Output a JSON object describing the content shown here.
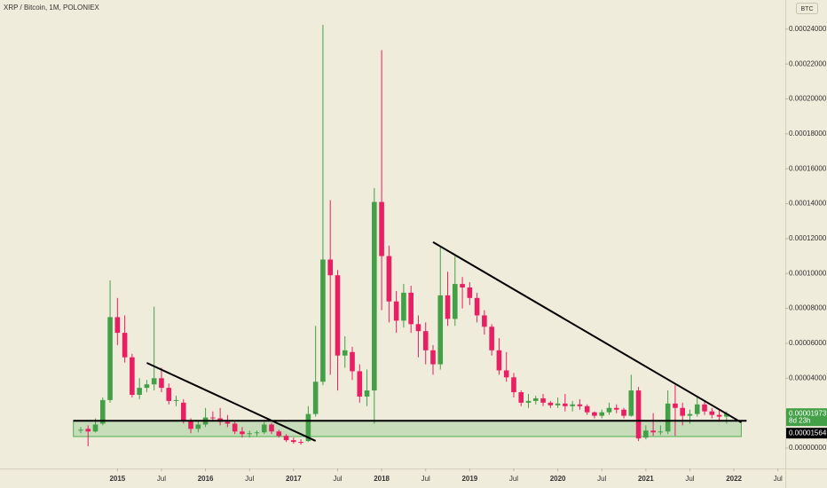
{
  "chart_data": {
    "type": "candlestick",
    "title": "XRP / Bitcoin, 1M, POLONIEX",
    "currency": "BTC",
    "up_color": "#43a047",
    "down_color": "#e91e63",
    "x": [
      "2014-08",
      "2014-09",
      "2014-10",
      "2014-11",
      "2014-12",
      "2015-01",
      "2015-02",
      "2015-03",
      "2015-04",
      "2015-05",
      "2015-06",
      "2015-07",
      "2015-08",
      "2015-09",
      "2015-10",
      "2015-11",
      "2015-12",
      "2016-01",
      "2016-02",
      "2016-03",
      "2016-04",
      "2016-05",
      "2016-06",
      "2016-07",
      "2016-08",
      "2016-09",
      "2016-10",
      "2016-11",
      "2016-12",
      "2017-01",
      "2017-02",
      "2017-03",
      "2017-04",
      "2017-05",
      "2017-06",
      "2017-07",
      "2017-08",
      "2017-09",
      "2017-10",
      "2017-11",
      "2017-12",
      "2018-01",
      "2018-02",
      "2018-03",
      "2018-04",
      "2018-05",
      "2018-06",
      "2018-07",
      "2018-08",
      "2018-09",
      "2018-10",
      "2018-11",
      "2018-12",
      "2019-01",
      "2019-02",
      "2019-03",
      "2019-04",
      "2019-05",
      "2019-06",
      "2019-07",
      "2019-08",
      "2019-09",
      "2019-10",
      "2019-11",
      "2019-12",
      "2020-01",
      "2020-02",
      "2020-03",
      "2020-04",
      "2020-05",
      "2020-06",
      "2020-07",
      "2020-08",
      "2020-09",
      "2020-10",
      "2020-11",
      "2020-12",
      "2021-01",
      "2021-02",
      "2021-03",
      "2021-04",
      "2021-05",
      "2021-06",
      "2021-07",
      "2021-08",
      "2021-09",
      "2021-10",
      "2021-11",
      "2021-12"
    ],
    "ohlc": [
      [
        1e-05,
        1.2e-05,
        8.5e-06,
        1.05e-05
      ],
      [
        1.1e-05,
        1.3e-05,
        1e-06,
        9.5e-06
      ],
      [
        9.5e-06,
        1.7e-05,
        9e-06,
        1.35e-05
      ],
      [
        1.4e-05,
        2.9e-05,
        1.3e-05,
        2.75e-05
      ],
      [
        2.75e-05,
        9.6e-05,
        2.6e-05,
        7.5e-05
      ],
      [
        7.5e-05,
        8.6e-05,
        5.9e-05,
        6.6e-05
      ],
      [
        6.6e-05,
        7.6e-05,
        4.9e-05,
        5.2e-05
      ],
      [
        5.2e-05,
        5.4e-05,
        2.9e-05,
        3.05e-05
      ],
      [
        3.05e-05,
        4e-05,
        2.8e-05,
        3.45e-05
      ],
      [
        3.45e-05,
        3.9e-05,
        3.2e-05,
        3.65e-05
      ],
      [
        3.65e-05,
        8.1e-05,
        3.3e-05,
        4e-05
      ],
      [
        4e-05,
        4.6e-05,
        3.2e-05,
        3.45e-05
      ],
      [
        3.45e-05,
        3.7e-05,
        2.5e-05,
        2.7e-05
      ],
      [
        2.7e-05,
        3e-05,
        2.4e-05,
        2.75e-05
      ],
      [
        2.6e-05,
        2.8e-05,
        1.4e-05,
        1.55e-05
      ],
      [
        1.55e-05,
        1.7e-05,
        8.5e-06,
        1.1e-05
      ],
      [
        1.1e-05,
        1.6e-05,
        9e-06,
        1.35e-05
      ],
      [
        1.35e-05,
        2.3e-05,
        1.2e-05,
        1.75e-05
      ],
      [
        1.75e-05,
        2.1e-05,
        1.5e-05,
        1.7e-05
      ],
      [
        1.7e-05,
        2.3e-05,
        1.3e-05,
        1.5e-05
      ],
      [
        1.5e-05,
        1.9e-05,
        1.2e-05,
        1.4e-05
      ],
      [
        1.4e-05,
        1.6e-05,
        8e-06,
        9.5e-06
      ],
      [
        9.5e-06,
        1.2e-05,
        6e-06,
        8e-06
      ],
      [
        8e-06,
        1e-05,
        6e-06,
        8.5e-06
      ],
      [
        8.5e-06,
        1e-05,
        7e-06,
        9e-06
      ],
      [
        9e-06,
        1.5e-05,
        8e-06,
        1.35e-05
      ],
      [
        1.35e-05,
        1.45e-05,
        8e-06,
        9.5e-06
      ],
      [
        9.5e-06,
        1.05e-05,
        6e-06,
        7e-06
      ],
      [
        7e-06,
        8e-06,
        3.5e-06,
        4.5e-06
      ],
      [
        4.5e-06,
        6e-06,
        2.5e-06,
        3.5e-06
      ],
      [
        3.5e-06,
        5e-06,
        2e-06,
        3e-06
      ],
      [
        4e-06,
        2.4e-05,
        3.5e-06,
        1.95e-05
      ],
      [
        1.95e-05,
        7e-05,
        1.8e-05,
        3.8e-05
      ],
      [
        3.8e-05,
        0.0002425,
        3.6e-05,
        0.000108
      ],
      [
        0.000108,
        0.000142,
        4.2e-05,
        9.9e-05
      ],
      [
        9.9e-05,
        0.000102,
        3.3e-05,
        5.3e-05
      ],
      [
        5.3e-05,
        6.4e-05,
        4.6e-05,
        5.6e-05
      ],
      [
        5.5e-05,
        5.8e-05,
        3.9e-05,
        4.4e-05
      ],
      [
        4.4e-05,
        4.8e-05,
        2.6e-05,
        2.95e-05
      ],
      [
        2.95e-05,
        4.5e-05,
        2.4e-05,
        3.3e-05
      ],
      [
        3.3e-05,
        0.000149,
        1.4e-05,
        0.000141
      ],
      [
        0.000141,
        0.000228,
        7.9e-05,
        0.00011
      ],
      [
        0.00011,
        0.000116,
        7.2e-05,
        8.4e-05
      ],
      [
        8.4e-05,
        9e-05,
        6.6e-05,
        7.3e-05
      ],
      [
        7.3e-05,
        9.4e-05,
        6.9e-05,
        8.9e-05
      ],
      [
        8.9e-05,
        9.3e-05,
        6.6e-05,
        7.1e-05
      ],
      [
        7.1e-05,
        7.6e-05,
        5.2e-05,
        6.7e-05
      ],
      [
        6.7e-05,
        7.2e-05,
        4.8e-05,
        5.6e-05
      ],
      [
        5.6e-05,
        5.9e-05,
        4.2e-05,
        4.8e-05
      ],
      [
        4.8e-05,
        0.000115,
        4.5e-05,
        8.75e-05
      ],
      [
        8.75e-05,
        0.000101,
        7e-05,
        7.4e-05
      ],
      [
        7.4e-05,
        0.00011,
        7e-05,
        9.4e-05
      ],
      [
        9.4e-05,
        9.8e-05,
        8e-05,
        9.2e-05
      ],
      [
        9.2e-05,
        9.5e-05,
        8.2e-05,
        8.6e-05
      ],
      [
        8.6e-05,
        8.9e-05,
        7.2e-05,
        7.6e-05
      ],
      [
        7.6e-05,
        7.9e-05,
        6.5e-05,
        6.95e-05
      ],
      [
        6.95e-05,
        7.1e-05,
        5.3e-05,
        5.6e-05
      ],
      [
        5.6e-05,
        6.3e-05,
        4.2e-05,
        4.45e-05
      ],
      [
        4.45e-05,
        5.5e-05,
        3.8e-05,
        4.05e-05
      ],
      [
        4.05e-05,
        4.3e-05,
        2.9e-05,
        3.2e-05
      ],
      [
        3.2e-05,
        3.3e-05,
        2.4e-05,
        2.6e-05
      ],
      [
        2.6e-05,
        3.1e-05,
        2.3e-05,
        2.7e-05
      ],
      [
        2.7e-05,
        3e-05,
        2.5e-05,
        2.85e-05
      ],
      [
        2.85e-05,
        3.1e-05,
        2.4e-05,
        2.6e-05
      ],
      [
        2.6e-05,
        2.7e-05,
        2.3e-05,
        2.45e-05
      ],
      [
        2.45e-05,
        2.9e-05,
        2.3e-05,
        2.55e-05
      ],
      [
        2.55e-05,
        3.1e-05,
        2.1e-05,
        2.4e-05
      ],
      [
        2.4e-05,
        2.7e-05,
        2.1e-05,
        2.5e-05
      ],
      [
        2.5e-05,
        2.8e-05,
        2.2e-05,
        2.4e-05
      ],
      [
        2.4e-05,
        2.5e-05,
        1.9e-05,
        2.05e-05
      ],
      [
        2.05e-05,
        2.1e-05,
        1.7e-05,
        1.85e-05
      ],
      [
        1.85e-05,
        2.2e-05,
        1.7e-05,
        2.05e-05
      ],
      [
        2.05e-05,
        2.6e-05,
        1.9e-05,
        2.3e-05
      ],
      [
        2.3e-05,
        2.5e-05,
        2e-05,
        2.2e-05
      ],
      [
        2.2e-05,
        2.3e-05,
        1.7e-05,
        1.85e-05
      ],
      [
        1.85e-05,
        4.2e-05,
        1.8e-05,
        3.3e-05
      ],
      [
        3.3e-05,
        3.5e-05,
        4e-06,
        5.5e-06
      ],
      [
        6e-06,
        1.3e-05,
        5e-06,
        1e-05
      ],
      [
        1e-05,
        2e-05,
        7e-06,
        9e-06
      ],
      [
        9e-06,
        1.3e-05,
        7.5e-06,
        9.5e-06
      ],
      [
        9.5e-06,
        3.3e-05,
        8e-06,
        2.55e-05
      ],
      [
        2.55e-05,
        3.6e-05,
        7e-06,
        2.3e-05
      ],
      [
        2.3e-05,
        2.6e-05,
        1.3e-05,
        1.85e-05
      ],
      [
        1.85e-05,
        2.2e-05,
        1.4e-05,
        1.95e-05
      ],
      [
        1.95e-05,
        2.9e-05,
        1.8e-05,
        2.5e-05
      ],
      [
        2.5e-05,
        2.7e-05,
        1.9e-05,
        2.1e-05
      ],
      [
        2.1e-05,
        2.3e-05,
        1.7e-05,
        1.9e-05
      ],
      [
        1.9e-05,
        2.2e-05,
        1.5e-05,
        1.8e-05
      ],
      [
        1.8e-05,
        2.1e-05,
        1.4e-05,
        1.973e-05
      ]
    ],
    "xlim": [
      "2013-09",
      "2022-08"
    ],
    "xticks": [
      {
        "value": "2015-01",
        "label": "2015"
      },
      {
        "value": "2015-07",
        "label": "Jul"
      },
      {
        "value": "2016-01",
        "label": "2016"
      },
      {
        "value": "2016-07",
        "label": "Jul"
      },
      {
        "value": "2017-01",
        "label": "2017"
      },
      {
        "value": "2017-07",
        "label": "Jul"
      },
      {
        "value": "2018-01",
        "label": "2018"
      },
      {
        "value": "2018-07",
        "label": "Jul"
      },
      {
        "value": "2019-01",
        "label": "2019"
      },
      {
        "value": "2019-07",
        "label": "Jul"
      },
      {
        "value": "2020-01",
        "label": "2020"
      },
      {
        "value": "2020-07",
        "label": "Jul"
      },
      {
        "value": "2021-01",
        "label": "2021"
      },
      {
        "value": "2021-07",
        "label": "Jul"
      },
      {
        "value": "2022-01",
        "label": "2022"
      },
      {
        "value": "2022-07",
        "label": "Jul"
      }
    ],
    "ylim": [
      -1.17e-05,
      0.0002567
    ],
    "yticks": [
      {
        "value": 0,
        "label": "0.00000000"
      },
      {
        "value": 2e-05,
        "label": "0.00002000"
      },
      {
        "value": 4e-05,
        "label": "0.00004000"
      },
      {
        "value": 6e-05,
        "label": "0.00006000"
      },
      {
        "value": 8e-05,
        "label": "0.00008000"
      },
      {
        "value": 0.0001,
        "label": "0.00010000"
      },
      {
        "value": 0.00012,
        "label": "0.00012000"
      },
      {
        "value": 0.00014,
        "label": "0.00014000"
      },
      {
        "value": 0.00016,
        "label": "0.00016000"
      },
      {
        "value": 0.00018,
        "label": "0.00018000"
      },
      {
        "value": 0.0002,
        "label": "0.00020000"
      },
      {
        "value": 0.00022,
        "label": "0.00022000"
      },
      {
        "value": 0.00024,
        "label": "0.00024000"
      }
    ],
    "last_price": {
      "value": 1.973e-05,
      "label": "0.00001973"
    },
    "countdown": "8d 23h",
    "support": {
      "value": 1.564e-05,
      "label": "0.00001564"
    },
    "zone": {
      "x": [
        "2014-07",
        "2022-02"
      ],
      "y": [
        6.6e-06,
        1.58e-05
      ],
      "color": "#4caf50"
    },
    "trendline_color": "#000000",
    "trendlines": [
      {
        "x": [
          "2015-05",
          "2017-04"
        ],
        "y": [
          4.88e-05,
          4.1e-06
        ]
      },
      {
        "x": [
          "2018-08",
          "2022-02"
        ],
        "y": [
          0.000118,
          1.47e-05
        ]
      }
    ]
  }
}
